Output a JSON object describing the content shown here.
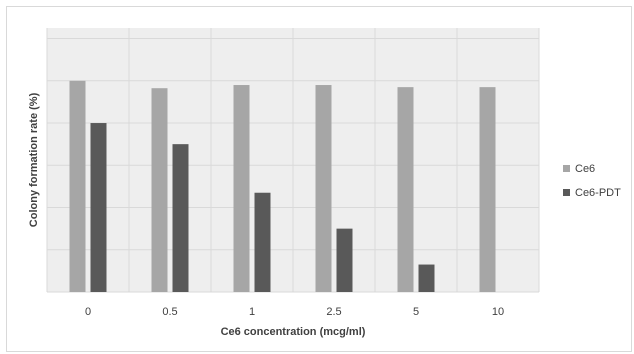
{
  "chart_data": {
    "type": "bar",
    "title": "",
    "xlabel": "Ce6 concentration (mcg/ml)",
    "ylabel": "Colony  formation rate (%)",
    "categories": [
      "0",
      "0.5",
      "1",
      "2.5",
      "5",
      "10"
    ],
    "series": [
      {
        "name": "Ce6",
        "color": "#a6a6a6",
        "values": [
          100,
          96.5,
          98,
          98,
          97,
          97
        ]
      },
      {
        "name": "Ce6-PDT",
        "color": "#595959",
        "values": [
          80,
          70,
          47,
          30,
          13,
          0
        ]
      }
    ],
    "ylim": [
      0,
      125
    ],
    "y_gridlines": [
      0,
      20,
      40,
      60,
      80,
      100,
      120
    ],
    "y_tick_labels_shown": false,
    "grid": true,
    "legend_position": "right",
    "plot_background": "#eeeeee"
  }
}
